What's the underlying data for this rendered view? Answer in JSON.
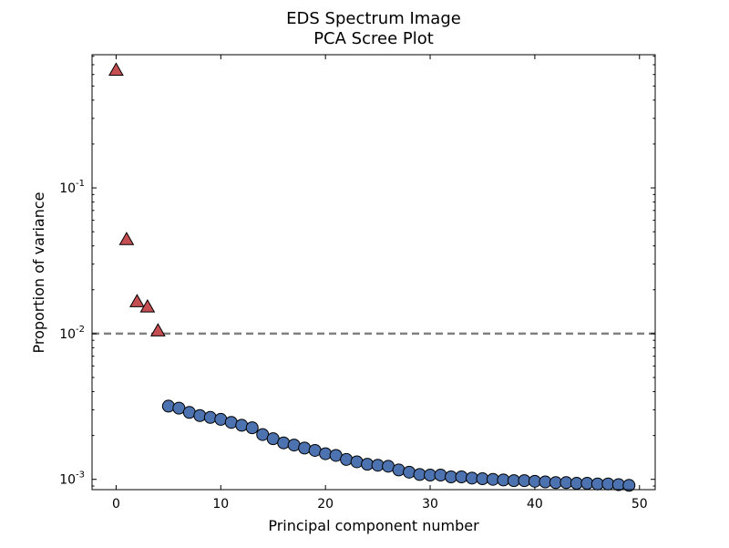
{
  "chart_data": {
    "type": "scatter",
    "title": "EDS Spectrum Image",
    "subtitle": "PCA Scree Plot",
    "xlabel": "Principal component number",
    "ylabel": "Proportion of variance",
    "xlim": [
      -2.3,
      51.5
    ],
    "ylim": [
      0.00085,
      0.82
    ],
    "yscale": "log",
    "grid": false,
    "x_ticks": [
      {
        "value": 0,
        "label": "0"
      },
      {
        "value": 10,
        "label": "10"
      },
      {
        "value": 20,
        "label": "20"
      },
      {
        "value": 30,
        "label": "30"
      },
      {
        "value": 40,
        "label": "40"
      },
      {
        "value": 50,
        "label": "50"
      }
    ],
    "y_ticks": [
      {
        "value": 0.1,
        "base": "10",
        "exp": "-1"
      },
      {
        "value": 0.01,
        "base": "10",
        "exp": "-2"
      },
      {
        "value": 0.001,
        "base": "10",
        "exp": "-3"
      }
    ],
    "threshold": {
      "value": 0.01,
      "color": "#808080"
    },
    "series": [
      {
        "marker": "triangle",
        "color": "#c44e52",
        "x": [
          0,
          1,
          2,
          3,
          4
        ],
        "values": [
          0.64,
          0.044,
          0.0165,
          0.0152,
          0.0104
        ]
      },
      {
        "marker": "circle",
        "color": "#4c72b0",
        "x": [
          5,
          6,
          7,
          8,
          9,
          10,
          11,
          12,
          13,
          14,
          15,
          16,
          17,
          18,
          19,
          20,
          21,
          22,
          23,
          24,
          25,
          26,
          27,
          28,
          29,
          30,
          31,
          32,
          33,
          34,
          35,
          36,
          37,
          38,
          39,
          40,
          41,
          42,
          43,
          44,
          45,
          46,
          47,
          48,
          49
        ],
        "values": [
          0.00318,
          0.00308,
          0.00288,
          0.00274,
          0.00266,
          0.00258,
          0.00246,
          0.00235,
          0.00226,
          0.00203,
          0.0019,
          0.00178,
          0.00172,
          0.00164,
          0.00158,
          0.0015,
          0.00146,
          0.00137,
          0.00132,
          0.00127,
          0.00125,
          0.00123,
          0.00116,
          0.00112,
          0.00108,
          0.00107,
          0.00107,
          0.00104,
          0.00104,
          0.00102,
          0.00101,
          0.001,
          0.00099,
          0.00098,
          0.00098,
          0.00097,
          0.00096,
          0.00095,
          0.00095,
          0.00094,
          0.00094,
          0.00093,
          0.00093,
          0.00092,
          0.00091
        ]
      }
    ]
  }
}
